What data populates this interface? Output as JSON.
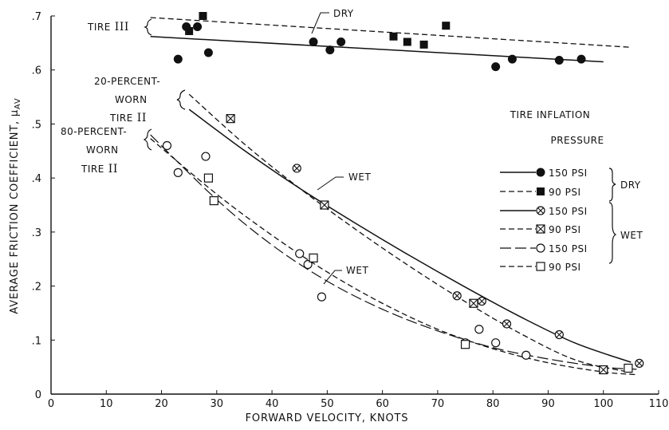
{
  "chart_data": {
    "type": "scatter",
    "xlabel": "FORWARD VELOCITY, KNOTS",
    "ylabel": "AVERAGE FRICTION COEFFICIENT, ",
    "ylabel_symbol": "μ",
    "ylabel_subscript": "AV",
    "xlim": [
      0,
      110
    ],
    "ylim": [
      0,
      0.7
    ],
    "xticks": [
      "0",
      "10",
      "20",
      "30",
      "40",
      "50",
      "60",
      "70",
      "80",
      "90",
      "100",
      "110"
    ],
    "yticks": [
      "0",
      ".1",
      ".2",
      ".3",
      ".4",
      ".5",
      ".6",
      ".7"
    ],
    "legend": {
      "title_line1": "TIRE INFLATION",
      "title_line2": "PRESSURE",
      "entries": [
        "150 PSI",
        "90 PSI",
        "150 PSI",
        "90 PSI",
        "150 PSI",
        "90 PSI"
      ],
      "group_dry": "DRY",
      "group_wet": "WET",
      "placement": "right"
    },
    "annotations": {
      "tire3": "TIRE",
      "tire3_roman": "III",
      "dry": "DRY",
      "worn20_line1": "20-PERCENT-",
      "worn20_line2": "WORN",
      "worn20_line3": "TIRE",
      "worn20_roman": "II",
      "worn80_line1": "80-PERCENT-",
      "worn80_line2": "WORN",
      "worn80_line3": "TIRE",
      "worn80_roman": "II",
      "wet_upper": "WET",
      "wet_lower": "WET"
    },
    "series": [
      {
        "marker": "filled-circle",
        "style": "solid",
        "points": [
          [
            23,
            0.62
          ],
          [
            24.5,
            0.68
          ],
          [
            26.5,
            0.68
          ],
          [
            28.5,
            0.632
          ],
          [
            47.5,
            0.652
          ],
          [
            50.5,
            0.637
          ],
          [
            52.5,
            0.652
          ],
          [
            80.5,
            0.606
          ],
          [
            83.5,
            0.62
          ],
          [
            92,
            0.618
          ],
          [
            96,
            0.62
          ]
        ],
        "curve": [
          [
            18,
            0.662
          ],
          [
            100,
            0.615
          ]
        ]
      },
      {
        "marker": "filled-square",
        "style": "dashed",
        "points": [
          [
            25,
            0.672
          ],
          [
            27.5,
            0.7
          ],
          [
            62,
            0.662
          ],
          [
            64.5,
            0.652
          ],
          [
            67.5,
            0.647
          ],
          [
            71.5,
            0.682
          ]
        ],
        "curve": [
          [
            18,
            0.697
          ],
          [
            105,
            0.642
          ]
        ]
      },
      {
        "marker": "circle-x",
        "style": "solid",
        "points": [
          [
            44.5,
            0.418
          ],
          [
            73.5,
            0.182
          ],
          [
            78,
            0.172
          ],
          [
            82.5,
            0.13
          ],
          [
            92,
            0.11
          ],
          [
            106.5,
            0.057
          ]
        ],
        "curve": [
          [
            25,
            0.527
          ],
          [
            35,
            0.451
          ],
          [
            45,
            0.381
          ],
          [
            55,
            0.317
          ],
          [
            65,
            0.256
          ],
          [
            75,
            0.198
          ],
          [
            85,
            0.143
          ],
          [
            95,
            0.094
          ],
          [
            105,
            0.059
          ]
        ]
      },
      {
        "marker": "square-x",
        "style": "dashed",
        "points": [
          [
            32.5,
            0.51
          ],
          [
            49.5,
            0.35
          ],
          [
            76.5,
            0.168
          ],
          [
            100,
            0.045
          ]
        ],
        "curve": [
          [
            25,
            0.555
          ],
          [
            35,
            0.463
          ],
          [
            45,
            0.381
          ],
          [
            55,
            0.306
          ],
          [
            65,
            0.236
          ],
          [
            75,
            0.171
          ],
          [
            85,
            0.112
          ],
          [
            95,
            0.063
          ],
          [
            105,
            0.04
          ]
        ]
      },
      {
        "marker": "open-circle",
        "style": "long-dash",
        "points": [
          [
            21,
            0.46
          ],
          [
            23,
            0.41
          ],
          [
            28,
            0.44
          ],
          [
            45,
            0.26
          ],
          [
            46.5,
            0.24
          ],
          [
            49,
            0.18
          ],
          [
            75,
            0.095
          ],
          [
            77.5,
            0.12
          ],
          [
            80.5,
            0.095
          ],
          [
            86,
            0.072
          ]
        ],
        "curve": [
          [
            18,
            0.48
          ],
          [
            30,
            0.36
          ],
          [
            40,
            0.276
          ],
          [
            50,
            0.209
          ],
          [
            60,
            0.157
          ],
          [
            70,
            0.117
          ],
          [
            80,
            0.086
          ],
          [
            90,
            0.065
          ],
          [
            100,
            0.05
          ],
          [
            106,
            0.046
          ]
        ]
      },
      {
        "marker": "open-square",
        "style": "dashed",
        "points": [
          [
            28.5,
            0.4
          ],
          [
            29.5,
            0.358
          ],
          [
            47.5,
            0.252
          ],
          [
            75,
            0.092
          ],
          [
            104.5,
            0.048
          ]
        ],
        "curve": [
          [
            18,
            0.473
          ],
          [
            30,
            0.37
          ],
          [
            40,
            0.294
          ],
          [
            50,
            0.226
          ],
          [
            60,
            0.168
          ],
          [
            70,
            0.12
          ],
          [
            80,
            0.084
          ],
          [
            90,
            0.058
          ],
          [
            100,
            0.041
          ],
          [
            106,
            0.036
          ]
        ]
      }
    ]
  }
}
